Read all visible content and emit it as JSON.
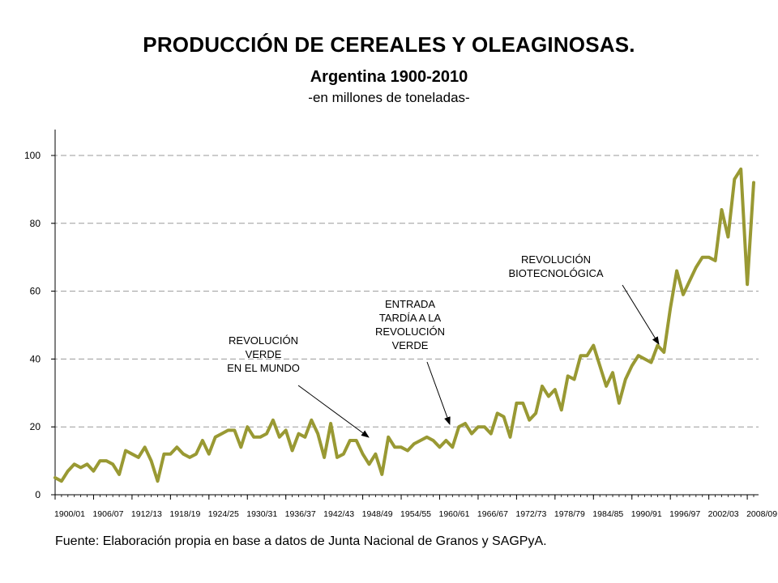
{
  "chart_data": {
    "type": "line",
    "title": "PRODUCCIÓN DE CEREALES Y OLEAGINOSAS",
    "title_suffix": ".",
    "subtitle": "Argentina 1900-2010",
    "units_text": "-en millones de  toneladas-",
    "source": "Fuente: Elaboración propia en base a datos de Junta Nacional de Granos y SAGPyA.",
    "ylim": [
      0,
      100
    ],
    "y_ticks": [
      0,
      20,
      40,
      60,
      80,
      100
    ],
    "grid": true,
    "line_color": "#999933",
    "x_tick_labels": [
      {
        "label": "1900/01",
        "index": 0
      },
      {
        "label": "1906/07",
        "index": 6
      },
      {
        "label": "1912/13",
        "index": 12
      },
      {
        "label": "1918/19",
        "index": 18
      },
      {
        "label": "1924/25",
        "index": 24
      },
      {
        "label": "1930/31",
        "index": 30
      },
      {
        "label": "1936/37",
        "index": 36
      },
      {
        "label": "1942/43",
        "index": 42
      },
      {
        "label": "1948/49",
        "index": 48
      },
      {
        "label": "1954/55",
        "index": 54
      },
      {
        "label": "1960/61",
        "index": 60
      },
      {
        "label": "1966/67",
        "index": 66
      },
      {
        "label": "1972/73",
        "index": 72
      },
      {
        "label": "1978/79",
        "index": 78
      },
      {
        "label": "1984/85",
        "index": 84
      },
      {
        "label": "1990/91",
        "index": 90
      },
      {
        "label": "1996/97",
        "index": 96
      },
      {
        "label": "2002/03",
        "index": 102
      },
      {
        "label": "2008/09",
        "index": 108
      }
    ],
    "values": [
      5,
      4,
      7,
      9,
      8,
      9,
      7,
      10,
      10,
      9,
      6,
      13,
      12,
      11,
      14,
      10,
      4,
      12,
      12,
      14,
      12,
      11,
      12,
      16,
      12,
      17,
      18,
      19,
      19,
      14,
      20,
      17,
      17,
      18,
      22,
      17,
      19,
      13,
      18,
      17,
      22,
      18,
      11,
      21,
      11,
      12,
      16,
      16,
      12,
      9,
      12,
      6,
      17,
      14,
      14,
      13,
      15,
      16,
      17,
      16,
      14,
      16,
      14,
      20,
      21,
      18,
      20,
      20,
      18,
      24,
      23,
      17,
      27,
      27,
      22,
      24,
      32,
      29,
      31,
      25,
      35,
      34,
      41,
      41,
      44,
      38,
      32,
      36,
      27,
      34,
      38,
      41,
      40,
      39,
      44,
      42,
      55,
      66,
      59,
      63,
      67,
      70,
      70,
      69,
      84,
      76,
      93,
      96,
      62,
      92
    ],
    "annotations": [
      {
        "lines": [
          "REVOLUCIÓN",
          "VERDE",
          "EN EL MUNDO"
        ],
        "target_index": 49
      },
      {
        "lines": [
          "ENTRADA",
          "TARDÍA A LA",
          "REVOLUCIÓN",
          "VERDE"
        ],
        "target_index": 61
      },
      {
        "lines": [
          "REVOLUCIÓN",
          "BIOTECNOLÓGICA"
        ],
        "target_index": 94
      }
    ]
  }
}
